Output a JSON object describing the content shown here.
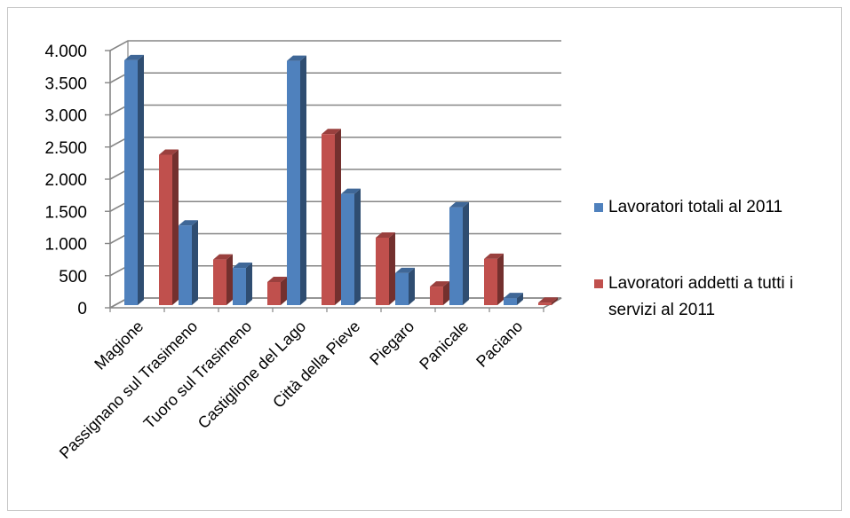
{
  "chart_data": {
    "type": "bar",
    "style": "3d-clustered-column",
    "categories": [
      "Magione",
      "Passignano sul Trasimeno",
      "Tuoro sul Trasimeno",
      "Castiglione del Lago",
      "Città della Pieve",
      "Piegaro",
      "Panicale",
      "Paciano"
    ],
    "series": [
      {
        "name": "Lavoratori totali al 2011",
        "legend_lines": [
          "Lavoratori totali al 2011"
        ],
        "color": "#4f81bd",
        "values": [
          3850,
          1280,
          620,
          3840,
          1770,
          540,
          1560,
          150
        ]
      },
      {
        "name": "Lavoratori addetti a tutti i servizi al 2011",
        "legend_lines": [
          "Lavoratori addetti a tutti i",
          "servizi al 2011"
        ],
        "color": "#c0504d",
        "values": [
          2380,
          750,
          400,
          2700,
          1090,
          330,
          760,
          80
        ]
      }
    ],
    "ylim": [
      0,
      4000
    ],
    "yticks": [
      0,
      500,
      1000,
      1500,
      2000,
      2500,
      3000,
      3500,
      4000
    ],
    "ytick_labels": [
      "0",
      "500",
      "1.000",
      "1.500",
      "2.000",
      "2.500",
      "3.000",
      "3.500",
      "4.000"
    ],
    "grid": true,
    "legend_position": "right",
    "title": "",
    "xlabel": "",
    "ylabel": ""
  }
}
